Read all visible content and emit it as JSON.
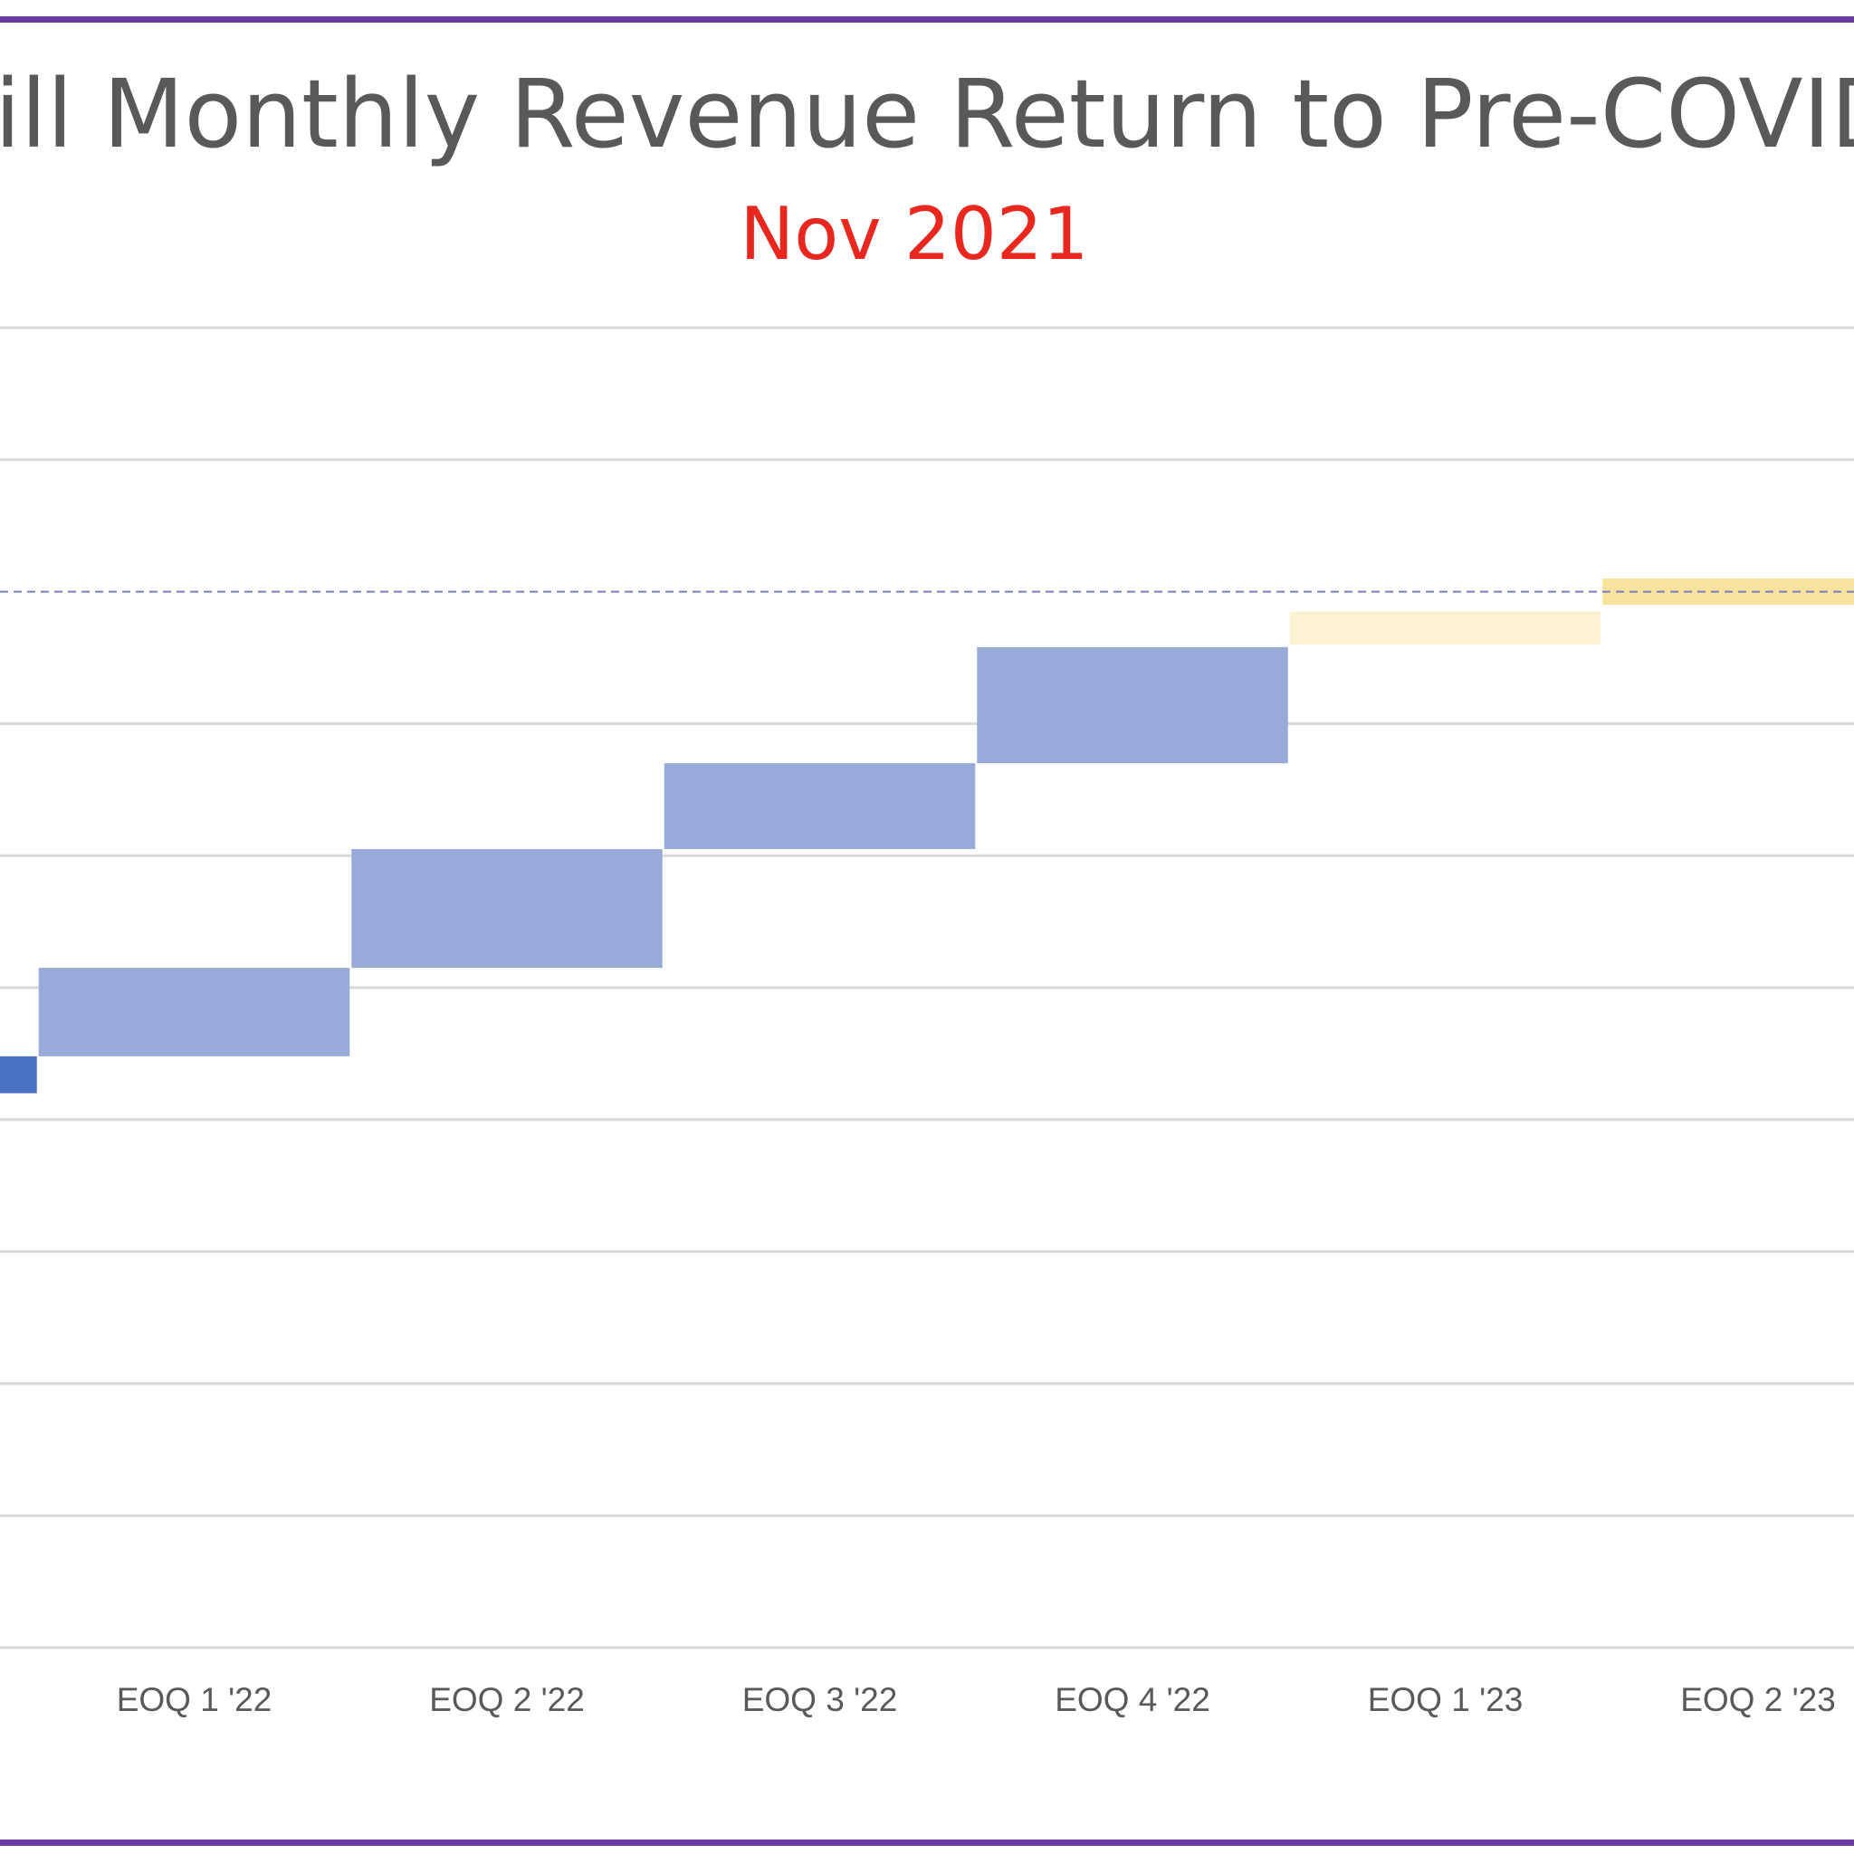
{
  "chart_data": {
    "type": "bar",
    "variant": "waterfall",
    "title": "ill Monthly Revenue Return to Pre-COVID",
    "subtitle": "Nov 2021",
    "categories": [
      "",
      "EOQ 1 '22",
      "EOQ 2 '22",
      "EOQ 3 '22",
      "EOQ 4 '22",
      "EOQ 1 '23",
      "EOQ 2 '23"
    ],
    "series": [
      {
        "values": [
          {
            "low": 4.2,
            "high": 4.48
          },
          {
            "low": 4.48,
            "high": 5.15
          },
          {
            "low": 5.15,
            "high": 6.05
          },
          {
            "low": 6.05,
            "high": 6.7
          },
          {
            "low": 6.7,
            "high": 7.58
          },
          {
            "low": 7.6,
            "high": 7.85
          },
          {
            "low": 7.9,
            "high": 8.1
          }
        ]
      }
    ],
    "reference_line": {
      "value": 8.0,
      "style": "dashed"
    },
    "ylim": [
      0,
      10
    ],
    "grid": true,
    "xlabel": "",
    "ylabel": "",
    "colors": {
      "first_bar": "#4a72c4",
      "increase_bar": "#97aad8",
      "forecast_bar_light": "#fdf3d3",
      "forecast_bar_gold": "#f8e39c",
      "grid": "#d9d9d9",
      "reference_line": "#7a7fc4",
      "frame": "#6b3aa3"
    }
  }
}
